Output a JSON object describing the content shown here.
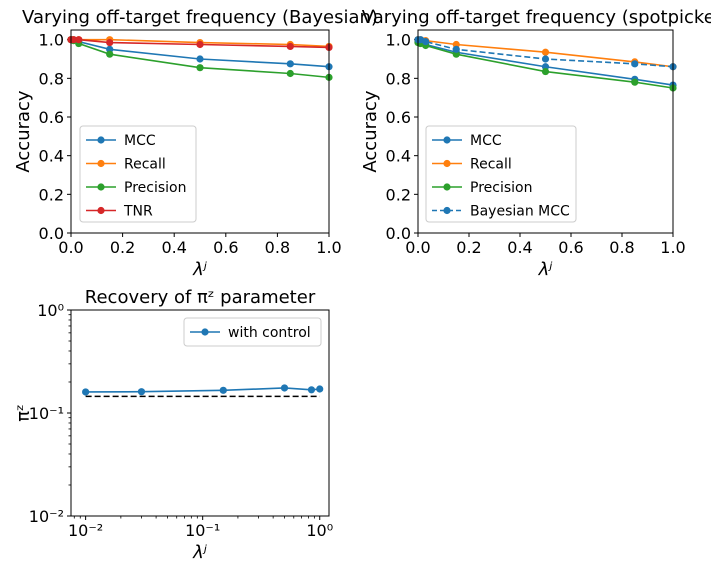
{
  "chart_data": [
    {
      "type": "line",
      "title": "Varying off-target frequency (Bayesian)",
      "xlabel": "λʲ",
      "ylabel": "Accuracy",
      "xlim": [
        0.0,
        1.0
      ],
      "ylim": [
        0.0,
        1.05
      ],
      "xscale": "linear",
      "yscale": "linear",
      "xticks": [
        0.0,
        0.2,
        0.4,
        0.6,
        0.8,
        1.0
      ],
      "xtick_labels": [
        "0.0",
        "0.2",
        "0.4",
        "0.6",
        "0.8",
        "1.0"
      ],
      "yticks": [
        0.0,
        0.2,
        0.4,
        0.6,
        0.8,
        1.0
      ],
      "ytick_labels": [
        "0.0",
        "0.2",
        "0.4",
        "0.6",
        "0.8",
        "1.0"
      ],
      "legend_position": "lower-left",
      "x": [
        0.0,
        0.01,
        0.03,
        0.15,
        0.5,
        0.85,
        1.0
      ],
      "series": [
        {
          "name": "MCC",
          "color": "#1f77b4",
          "dashed": false,
          "values": [
            1.0,
            1.0,
            0.99,
            0.95,
            0.9,
            0.875,
            0.86
          ]
        },
        {
          "name": "Recall",
          "color": "#ff7f0e",
          "dashed": false,
          "values": [
            1.0,
            1.0,
            1.0,
            1.0,
            0.985,
            0.975,
            0.965
          ]
        },
        {
          "name": "Precision",
          "color": "#2ca02c",
          "dashed": false,
          "values": [
            1.0,
            0.995,
            0.98,
            0.925,
            0.855,
            0.825,
            0.805
          ]
        },
        {
          "name": "TNR",
          "color": "#d62728",
          "dashed": false,
          "values": [
            1.0,
            1.0,
            1.0,
            0.985,
            0.975,
            0.965,
            0.96
          ]
        }
      ]
    },
    {
      "type": "line",
      "title": "Varying off-target frequency (spotpicker)",
      "xlabel": "λʲ",
      "ylabel": "Accuracy",
      "xlim": [
        0.0,
        1.0
      ],
      "ylim": [
        0.0,
        1.05
      ],
      "xscale": "linear",
      "yscale": "linear",
      "xticks": [
        0.0,
        0.2,
        0.4,
        0.6,
        0.8,
        1.0
      ],
      "xtick_labels": [
        "0.0",
        "0.2",
        "0.4",
        "0.6",
        "0.8",
        "1.0"
      ],
      "yticks": [
        0.0,
        0.2,
        0.4,
        0.6,
        0.8,
        1.0
      ],
      "ytick_labels": [
        "0.0",
        "0.2",
        "0.4",
        "0.6",
        "0.8",
        "1.0"
      ],
      "legend_position": "lower-left",
      "x": [
        0.0,
        0.01,
        0.03,
        0.15,
        0.5,
        0.85,
        1.0
      ],
      "series": [
        {
          "name": "MCC",
          "color": "#1f77b4",
          "dashed": false,
          "values": [
            0.99,
            0.985,
            0.975,
            0.935,
            0.86,
            0.795,
            0.765
          ]
        },
        {
          "name": "Recall",
          "color": "#ff7f0e",
          "dashed": false,
          "values": [
            1.0,
            1.0,
            0.995,
            0.975,
            0.935,
            0.885,
            0.86
          ]
        },
        {
          "name": "Precision",
          "color": "#2ca02c",
          "dashed": false,
          "values": [
            0.985,
            0.98,
            0.97,
            0.925,
            0.835,
            0.78,
            0.75
          ]
        },
        {
          "name": "Bayesian MCC",
          "color": "#1f77b4",
          "dashed": true,
          "values": [
            1.0,
            1.0,
            0.99,
            0.95,
            0.9,
            0.875,
            0.86
          ]
        }
      ]
    },
    {
      "type": "line",
      "title": "Recovery of πᶻ parameter",
      "xlabel": "λʲ",
      "ylabel": "πᶻ",
      "xscale": "log",
      "yscale": "log",
      "xlim": [
        0.0075,
        1.2
      ],
      "ylim": [
        0.01,
        1.0
      ],
      "xticks": [
        0.01,
        0.1,
        1.0
      ],
      "xtick_labels": [
        "10⁻²",
        "10⁻¹",
        "10⁰"
      ],
      "yticks": [
        0.01,
        0.1,
        1.0
      ],
      "ytick_labels": [
        "10⁻²",
        "10⁻¹",
        "10⁰"
      ],
      "legend_position": "upper-right",
      "x": [
        0.01,
        0.03,
        0.15,
        0.5,
        0.85,
        1.0
      ],
      "series": [
        {
          "name": "with control",
          "color": "#1f77b4",
          "dashed": false,
          "values": [
            0.16,
            0.161,
            0.166,
            0.175,
            0.168,
            0.171
          ]
        }
      ],
      "reference_line": {
        "color": "#000000",
        "dashed": true,
        "x": [
          0.01,
          1.0
        ],
        "values": [
          0.145,
          0.145
        ]
      }
    }
  ]
}
